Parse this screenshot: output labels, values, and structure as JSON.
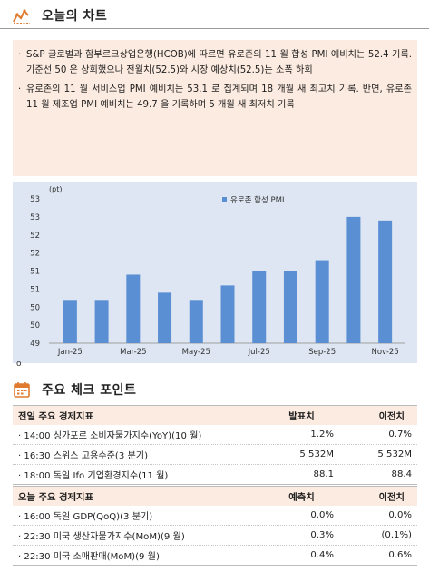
{
  "section1": {
    "title": "오늘의 차트",
    "icon": "line-chart-icon"
  },
  "summary": {
    "bullets": [
      "S&P 글로벌과 함부르크상업은행(HCOB)에 따르면 유로존의 11 월 합성 PMI 예비치는 52.4 기록. 기준선 50 은 상회했으나 전월치(52.5)와 시장 예상치(52.5)는 소폭 하회",
      "유로존의 11 월 서비스업 PMI 예비치는 53.1 로 집계되며 18 개월 새 최고치 기록. 반면, 유로존 11 월 제조업 PMI 예비치는 49.7 을 기록하며 5 개월 새 최저치 기록"
    ]
  },
  "chart_data": {
    "type": "bar",
    "unit_label": "(pt)",
    "legend": "유로존 합성 PMI",
    "legend_position": "top-right",
    "categories": [
      "Jan-25",
      "Feb-25",
      "Mar-25",
      "Apr-25",
      "May-25",
      "Jun-25",
      "Jul-25",
      "Aug-25",
      "Sep-25",
      "Oct-25",
      "Nov-25"
    ],
    "x_tick_labels": [
      "Jan-25",
      "",
      "Mar-25",
      "",
      "May-25",
      "",
      "Jul-25",
      "",
      "Sep-25",
      "",
      "Nov-25"
    ],
    "values": [
      50.2,
      50.2,
      50.9,
      50.4,
      50.2,
      50.6,
      51.0,
      51.0,
      51.3,
      52.5,
      52.4
    ],
    "ylim": [
      49,
      53
    ],
    "y_ticks": [
      49,
      49.5,
      50,
      50.5,
      51,
      51.5,
      52,
      52.5,
      53
    ],
    "y_tick_labels": [
      "49",
      "50",
      "50",
      "51",
      "51",
      "52",
      "52",
      "53",
      "53"
    ],
    "grid": false,
    "bar_color": "#5b8fd3",
    "background": "#dde6f2"
  },
  "small_mark": "o",
  "section2": {
    "title": "주요 체크 포인트",
    "icon": "calendar-icon"
  },
  "table1": {
    "headers": [
      "전일 주요 경제지표",
      "발표치",
      "이전치"
    ],
    "rows": [
      [
        "14:00 싱가포르 소비자물가지수(YoY)(10 월)",
        "1.2%",
        "0.7%"
      ],
      [
        "16:30 스위스 고용수준(3 분기)",
        "5.532M",
        "5.532M"
      ],
      [
        "18:00 독일 Ifo 기업환경지수(11 월)",
        "88.1",
        "88.4"
      ]
    ]
  },
  "table2": {
    "headers": [
      "오늘 주요 경제지표",
      "예측치",
      "이전치"
    ],
    "rows": [
      [
        "16:00 독일 GDP(QoQ)(3 분기)",
        "0.0%",
        "0.0%"
      ],
      [
        "22:30 미국 생산자물가지수(MoM)(9 월)",
        "0.3%",
        "(0.1%)"
      ],
      [
        "22:30 미국 소매판매(MoM)(9 월)",
        "0.4%",
        "0.6%"
      ]
    ]
  },
  "colors": {
    "accent": "#e07a2e",
    "header_bg": "#fcebe0",
    "bar": "#5b8fd3"
  }
}
